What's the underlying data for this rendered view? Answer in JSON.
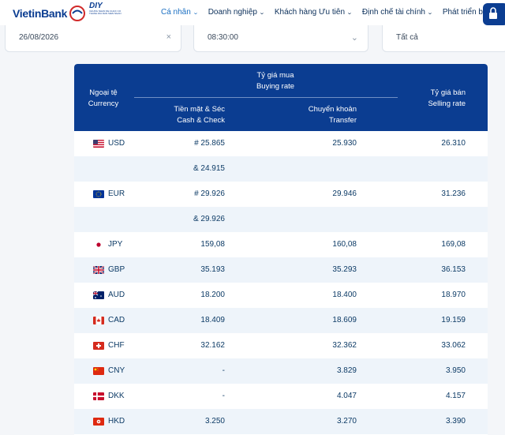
{
  "brand": {
    "name": "VietinBank",
    "badge_title": "DIY",
    "badge_sub": "CHUNG NHAN DE CHUC CO THANH DIA DAN SIEN NGAN"
  },
  "nav": [
    {
      "label": "Cá nhân",
      "active": true
    },
    {
      "label": "Doanh nghiệp"
    },
    {
      "label": "Khách hàng Ưu tiên"
    },
    {
      "label": "Định chế tài chính"
    },
    {
      "label": "Phát triển bền vững"
    }
  ],
  "filters": {
    "date": "26/08/2026",
    "time": "08:30:00",
    "type": "Tất cả"
  },
  "table_header": {
    "currency_vi": "Ngoại tệ",
    "currency_en": "Currency",
    "buying_vi": "Tỷ giá mua",
    "buying_en": "Buying rate",
    "cash_vi": "Tiền mặt & Séc",
    "cash_en": "Cash & Check",
    "transfer_vi": "Chuyển khoản",
    "transfer_en": "Transfer",
    "selling_vi": "Tỷ giá bán",
    "selling_en": "Selling rate"
  },
  "rows": [
    {
      "code": "USD",
      "flag": "us-flag",
      "cash": "# 25.865",
      "transfer": "25.930",
      "sell": "26.310"
    },
    {
      "code": "",
      "flag": "",
      "cash": "& 24.915",
      "transfer": "",
      "sell": ""
    },
    {
      "code": "EUR",
      "flag": "eu-flag",
      "cash": "# 29.926",
      "transfer": "29.946",
      "sell": "31.236"
    },
    {
      "code": "",
      "flag": "",
      "cash": "& 29.926",
      "transfer": "",
      "sell": ""
    },
    {
      "code": "JPY",
      "flag": "jp-flag",
      "cash": "159,08",
      "transfer": "160,08",
      "sell": "169,08"
    },
    {
      "code": "GBP",
      "flag": "gb-flag",
      "cash": "35.193",
      "transfer": "35.293",
      "sell": "36.153"
    },
    {
      "code": "AUD",
      "flag": "au-flag",
      "cash": "18.200",
      "transfer": "18.400",
      "sell": "18.970"
    },
    {
      "code": "CAD",
      "flag": "ca-flag",
      "cash": "18.409",
      "transfer": "18.609",
      "sell": "19.159"
    },
    {
      "code": "CHF",
      "flag": "ch-flag",
      "cash": "32.162",
      "transfer": "32.362",
      "sell": "33.062"
    },
    {
      "code": "CNY",
      "flag": "cn-flag",
      "cash": "-",
      "transfer": "3.829",
      "sell": "3.950"
    },
    {
      "code": "DKK",
      "flag": "dk-flag",
      "cash": "-",
      "transfer": "4.047",
      "sell": "4.157"
    },
    {
      "code": "HKD",
      "flag": "hk-flag",
      "cash": "3.250",
      "transfer": "3.270",
      "sell": "3.390"
    }
  ],
  "colors": {
    "header_bg": "#0b3d91",
    "accent": "#1a6fc2",
    "alt_row": "#eef4fa"
  }
}
